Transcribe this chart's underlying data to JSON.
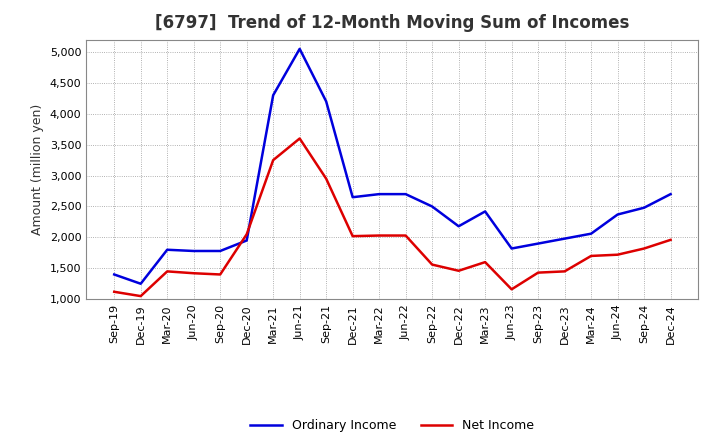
{
  "title": "[6797]  Trend of 12-Month Moving Sum of Incomes",
  "ylabel": "Amount (million yen)",
  "ylim": [
    1000,
    5200
  ],
  "yticks": [
    1000,
    1500,
    2000,
    2500,
    3000,
    3500,
    4000,
    4500,
    5000
  ],
  "background_color": "#ffffff",
  "plot_bg_color": "#ffffff",
  "grid_color": "#999999",
  "labels": [
    "Sep-19",
    "Dec-19",
    "Mar-20",
    "Jun-20",
    "Sep-20",
    "Dec-20",
    "Mar-21",
    "Jun-21",
    "Sep-21",
    "Dec-21",
    "Mar-22",
    "Jun-22",
    "Sep-22",
    "Dec-22",
    "Mar-23",
    "Jun-23",
    "Sep-23",
    "Dec-23",
    "Mar-24",
    "Jun-24",
    "Sep-24",
    "Dec-24"
  ],
  "ordinary_income": [
    1400,
    1250,
    1800,
    1780,
    1780,
    1950,
    4300,
    5050,
    4200,
    2650,
    2700,
    2700,
    2500,
    2180,
    2420,
    1820,
    1900,
    1980,
    2060,
    2370,
    2480,
    2700
  ],
  "net_income": [
    1120,
    1050,
    1450,
    1420,
    1400,
    2050,
    3250,
    3600,
    2950,
    2020,
    2030,
    2030,
    1560,
    1460,
    1600,
    1160,
    1430,
    1450,
    1700,
    1720,
    1820,
    1960
  ],
  "ordinary_color": "#0000dd",
  "net_color": "#dd0000",
  "line_width": 1.8,
  "title_fontsize": 12,
  "title_color": "#333333",
  "axis_fontsize": 9,
  "tick_fontsize": 8,
  "legend_fontsize": 9
}
